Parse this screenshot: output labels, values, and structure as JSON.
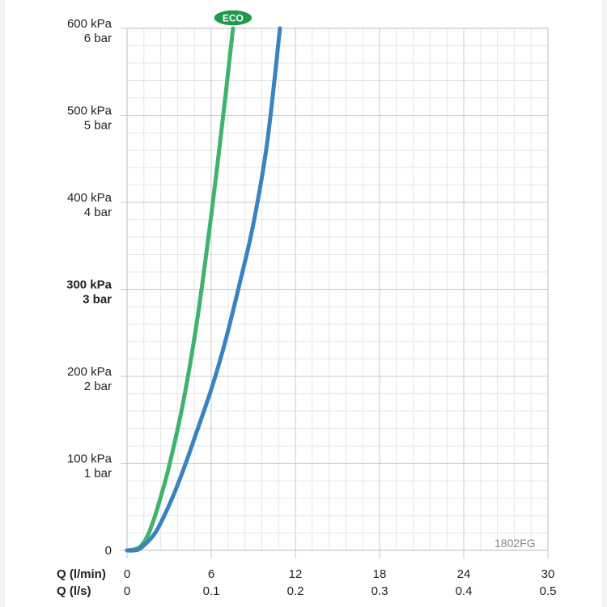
{
  "colors": {
    "eco_series": "#3db36b",
    "standard_series": "#3a83c0",
    "badge": "#1f9a4c",
    "grid_minor": "#e6e6e6",
    "grid_major": "#c8c8c8"
  },
  "chart_data": {
    "type": "line",
    "x_unit_rows": [
      {
        "title": "Q (l/min)",
        "ticks": [
          "0",
          "6",
          "12",
          "18",
          "24",
          "30"
        ]
      },
      {
        "title": "Q (l/s)",
        "ticks": [
          "0",
          "0.1",
          "0.2",
          "0.3",
          "0.4",
          "0.5"
        ]
      }
    ],
    "x_ticks": [
      0,
      6,
      12,
      18,
      24,
      30
    ],
    "xlim": [
      0,
      30
    ],
    "ylim": [
      0,
      600
    ],
    "y_ticks": [
      {
        "value": 0,
        "line1": "0",
        "line2": "",
        "bold": false
      },
      {
        "value": 100,
        "line1": "100 kPa",
        "line2": "1 bar",
        "bold": false
      },
      {
        "value": 200,
        "line1": "200 kPa",
        "line2": "2 bar",
        "bold": false
      },
      {
        "value": 300,
        "line1": "300 kPa",
        "line2": "3 bar",
        "bold": true
      },
      {
        "value": 400,
        "line1": "400 kPa",
        "line2": "4 bar",
        "bold": false
      },
      {
        "value": 500,
        "line1": "500 kPa",
        "line2": "5 bar",
        "bold": false
      },
      {
        "value": 600,
        "line1": "600 kPa",
        "line2": "6 bar",
        "bold": false
      }
    ],
    "grid": true,
    "series": [
      {
        "name": "ECO",
        "color": "#3db36b",
        "points": [
          [
            0,
            0
          ],
          [
            0.5,
            1
          ],
          [
            1,
            5
          ],
          [
            1.5,
            18
          ],
          [
            2,
            40
          ],
          [
            2.5,
            67
          ],
          [
            3,
            97
          ],
          [
            4,
            170
          ],
          [
            5,
            265
          ],
          [
            6,
            385
          ],
          [
            7,
            520
          ],
          [
            7.55,
            600
          ]
        ]
      },
      {
        "name": "",
        "color": "#3a83c0",
        "points": [
          [
            0,
            0
          ],
          [
            0.5,
            0
          ],
          [
            1,
            3
          ],
          [
            2,
            20
          ],
          [
            3,
            52
          ],
          [
            4,
            92
          ],
          [
            5,
            138
          ],
          [
            6,
            185
          ],
          [
            7,
            240
          ],
          [
            8,
            305
          ],
          [
            9,
            375
          ],
          [
            10,
            470
          ],
          [
            10.9,
            600
          ]
        ]
      }
    ],
    "badge": "ECO",
    "image_code": "1802FG"
  }
}
